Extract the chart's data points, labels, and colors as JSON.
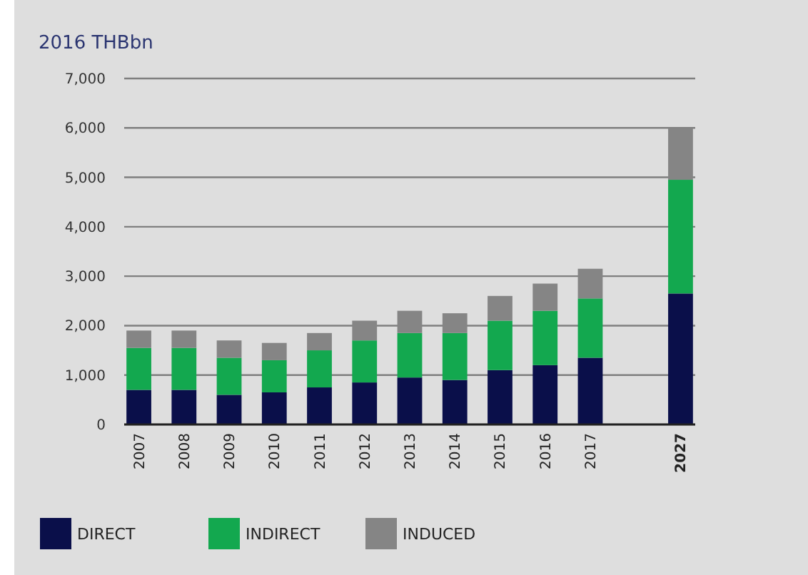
{
  "chart_data": {
    "type": "bar",
    "stacked": true,
    "title": "2016 THBbn",
    "categories": [
      "2007",
      "2008",
      "2009",
      "2010",
      "2011",
      "2012",
      "2013",
      "2014",
      "2015",
      "2016",
      "2017",
      "2027"
    ],
    "series": [
      {
        "name": "DIRECT",
        "color": "#0a0f4a",
        "values": [
          700,
          700,
          600,
          650,
          750,
          850,
          950,
          900,
          1100,
          1200,
          1350,
          2650
        ]
      },
      {
        "name": "INDIRECT",
        "color": "#13a84f",
        "values": [
          850,
          850,
          750,
          650,
          750,
          850,
          900,
          950,
          1000,
          1100,
          1200,
          2300
        ]
      },
      {
        "name": "INDUCED",
        "color": "#858585",
        "values": [
          350,
          350,
          350,
          350,
          350,
          400,
          450,
          400,
          500,
          550,
          600,
          1050
        ]
      }
    ],
    "ylim": [
      0,
      7000
    ],
    "yticks": [
      {
        "value": 0,
        "label": "0"
      },
      {
        "value": 1000,
        "label": "1,000"
      },
      {
        "value": 2000,
        "label": "2,000"
      },
      {
        "value": 3000,
        "label": "3,000"
      },
      {
        "value": 4000,
        "label": "4,000"
      },
      {
        "value": 5000,
        "label": "5,000"
      },
      {
        "value": 6000,
        "label": "6,000"
      },
      {
        "value": 7000,
        "label": "7,000"
      }
    ],
    "grid": "y",
    "legend": "bottom"
  }
}
